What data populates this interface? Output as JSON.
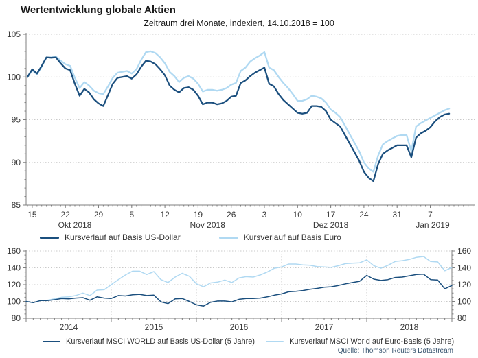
{
  "header": {
    "title": "Wertentwicklung globale Aktien",
    "subtitle": "Zeitraum drei Monate, indexiert, 14.10.2018 = 100"
  },
  "source": "Quelle: Thomson Reuters Datastream",
  "colors": {
    "usd_line": "#1b4f7e",
    "euro_line": "#b0d9f2",
    "grid": "#c9c9c9",
    "axis": "#7f7f7f",
    "text": "#3a3a3a"
  },
  "chart_data": [
    {
      "type": "line",
      "title": "Zeitraum drei Monate, indexiert, 14.10.2018 = 100",
      "x_unit": "day",
      "x_start_date": "2018-10-14",
      "x_end_date": "2019-01-11",
      "ylim": [
        85,
        105
      ],
      "yticks": [
        85,
        90,
        95,
        100,
        105
      ],
      "grid": "horizontal-dotted",
      "legend_position": "bottom",
      "xticks": [
        {
          "label": "15",
          "day": 1
        },
        {
          "label": "22",
          "day": 8
        },
        {
          "label": "29",
          "day": 15
        },
        {
          "label": "5",
          "day": 22
        },
        {
          "label": "12",
          "day": 29
        },
        {
          "label": "19",
          "day": 36
        },
        {
          "label": "26",
          "day": 43
        },
        {
          "label": "3",
          "day": 50
        },
        {
          "label": "10",
          "day": 57
        },
        {
          "label": "17",
          "day": 64
        },
        {
          "label": "24",
          "day": 71
        },
        {
          "label": "31",
          "day": 78
        },
        {
          "label": "7",
          "day": 85
        }
      ],
      "month_labels": [
        {
          "label": "Okt 2018",
          "day": 10
        },
        {
          "label": "Nov 2018",
          "day": 38
        },
        {
          "label": "Dez 2018",
          "day": 64
        },
        {
          "label": "Jan 2019",
          "day": 85.5
        }
      ],
      "series": [
        {
          "name": "Kursverlauf auf Basis US-Dollar",
          "color_key": "usd_line",
          "values": [
            100.0,
            100.9,
            100.4,
            101.3,
            102.3,
            102.25,
            102.3,
            101.6,
            101.0,
            100.8,
            99.2,
            97.8,
            98.6,
            98.2,
            97.4,
            96.9,
            96.6,
            97.9,
            99.2,
            99.9,
            100.0,
            100.1,
            99.8,
            100.3,
            101.2,
            101.9,
            101.8,
            101.5,
            100.9,
            100.2,
            99.0,
            98.5,
            98.2,
            98.7,
            98.8,
            98.5,
            97.8,
            96.8,
            97.0,
            97.0,
            96.8,
            96.9,
            97.2,
            97.7,
            97.8,
            99.3,
            99.6,
            100.1,
            100.5,
            100.8,
            101.1,
            99.2,
            98.9,
            98.0,
            97.3,
            96.8,
            96.3,
            95.8,
            95.7,
            95.8,
            96.6,
            96.6,
            96.5,
            96.0,
            95.0,
            94.6,
            94.2,
            93.2,
            92.2,
            91.2,
            90.2,
            88.9,
            88.2,
            87.8,
            89.8,
            91.0,
            91.4,
            91.7,
            92.0,
            92.0,
            92.0,
            90.6,
            92.9,
            93.4,
            93.7,
            94.1,
            94.8,
            95.3,
            95.6,
            95.7
          ]
        },
        {
          "name": "Kursverlauf auf Basis Euro",
          "color_key": "euro_line",
          "values": [
            100.0,
            100.8,
            100.3,
            101.2,
            102.3,
            102.3,
            102.4,
            101.9,
            101.5,
            101.3,
            99.9,
            98.7,
            99.4,
            99.0,
            98.4,
            98.1,
            98.0,
            98.9,
            99.9,
            100.5,
            100.6,
            100.7,
            100.4,
            100.9,
            102.0,
            102.9,
            103.0,
            102.8,
            102.3,
            101.6,
            100.6,
            100.1,
            99.4,
            99.9,
            100.1,
            99.8,
            99.2,
            98.3,
            98.5,
            98.5,
            98.4,
            98.5,
            98.7,
            99.1,
            99.3,
            100.7,
            101.1,
            101.8,
            102.2,
            102.5,
            102.9,
            101.1,
            100.8,
            100.0,
            99.3,
            98.7,
            98.0,
            97.2,
            97.2,
            97.4,
            97.8,
            97.7,
            97.5,
            97.0,
            96.2,
            95.8,
            95.3,
            94.3,
            93.3,
            92.3,
            91.3,
            90.0,
            89.3,
            88.9,
            90.8,
            92.1,
            92.5,
            92.8,
            93.1,
            93.2,
            93.2,
            91.3,
            94.2,
            94.6,
            94.9,
            95.2,
            95.5,
            95.8,
            96.1,
            96.3
          ]
        }
      ]
    },
    {
      "type": "line",
      "title": "",
      "x_unit": "month",
      "x_start": "2014-01",
      "x_end": "2019-01",
      "n_points": 61,
      "ylim": [
        80,
        160
      ],
      "yticks": [
        80,
        100,
        120,
        140,
        160
      ],
      "yticks_right": true,
      "grid": "horizontal-and-yearly-vertical-dotted",
      "legend_position": "bottom",
      "year_labels": [
        "2014",
        "2015",
        "2016",
        "2017",
        "2018"
      ],
      "series": [
        {
          "name": "Kursverlauf MSCI WORLD auf Basis U$-Dollar (5 Jahre)",
          "color_key": "usd_line",
          "values": [
            100,
            98.5,
            101,
            101,
            102,
            103.5,
            103,
            104,
            104.5,
            101.5,
            105.5,
            104,
            103.5,
            107,
            106.5,
            108,
            108.5,
            107,
            107.5,
            99.5,
            97.5,
            103,
            103.5,
            100,
            96,
            94.5,
            99,
            100.5,
            100.5,
            99.5,
            102.5,
            103.5,
            103.5,
            104,
            105.5,
            107.5,
            109,
            111.5,
            112,
            113,
            114.5,
            115.5,
            117,
            117.5,
            119,
            121,
            122.5,
            124,
            131,
            126.5,
            125,
            126,
            128.5,
            129,
            130.5,
            132,
            132.5,
            126,
            125.5,
            115,
            119
          ]
        },
        {
          "name": "Kursverlauf MSCI World auf Euro-Basis (5 Jahre)",
          "color_key": "euro_line",
          "values": [
            100,
            98.5,
            101,
            101.5,
            103,
            105,
            105.5,
            107,
            110,
            107,
            113.5,
            114,
            120,
            126,
            131.5,
            136,
            136,
            132,
            135.5,
            126,
            122.5,
            129,
            133.5,
            130,
            121,
            117.5,
            122,
            123,
            125.5,
            122.5,
            128,
            129.5,
            129,
            131.5,
            135,
            139.5,
            141,
            144.5,
            144.5,
            143.5,
            143,
            141.5,
            141,
            140.5,
            142.5,
            145,
            145.5,
            146,
            149.5,
            142.5,
            139.5,
            143,
            147.5,
            148.5,
            150,
            152.5,
            153.5,
            147.5,
            147,
            136.5,
            140.5
          ]
        }
      ]
    }
  ]
}
